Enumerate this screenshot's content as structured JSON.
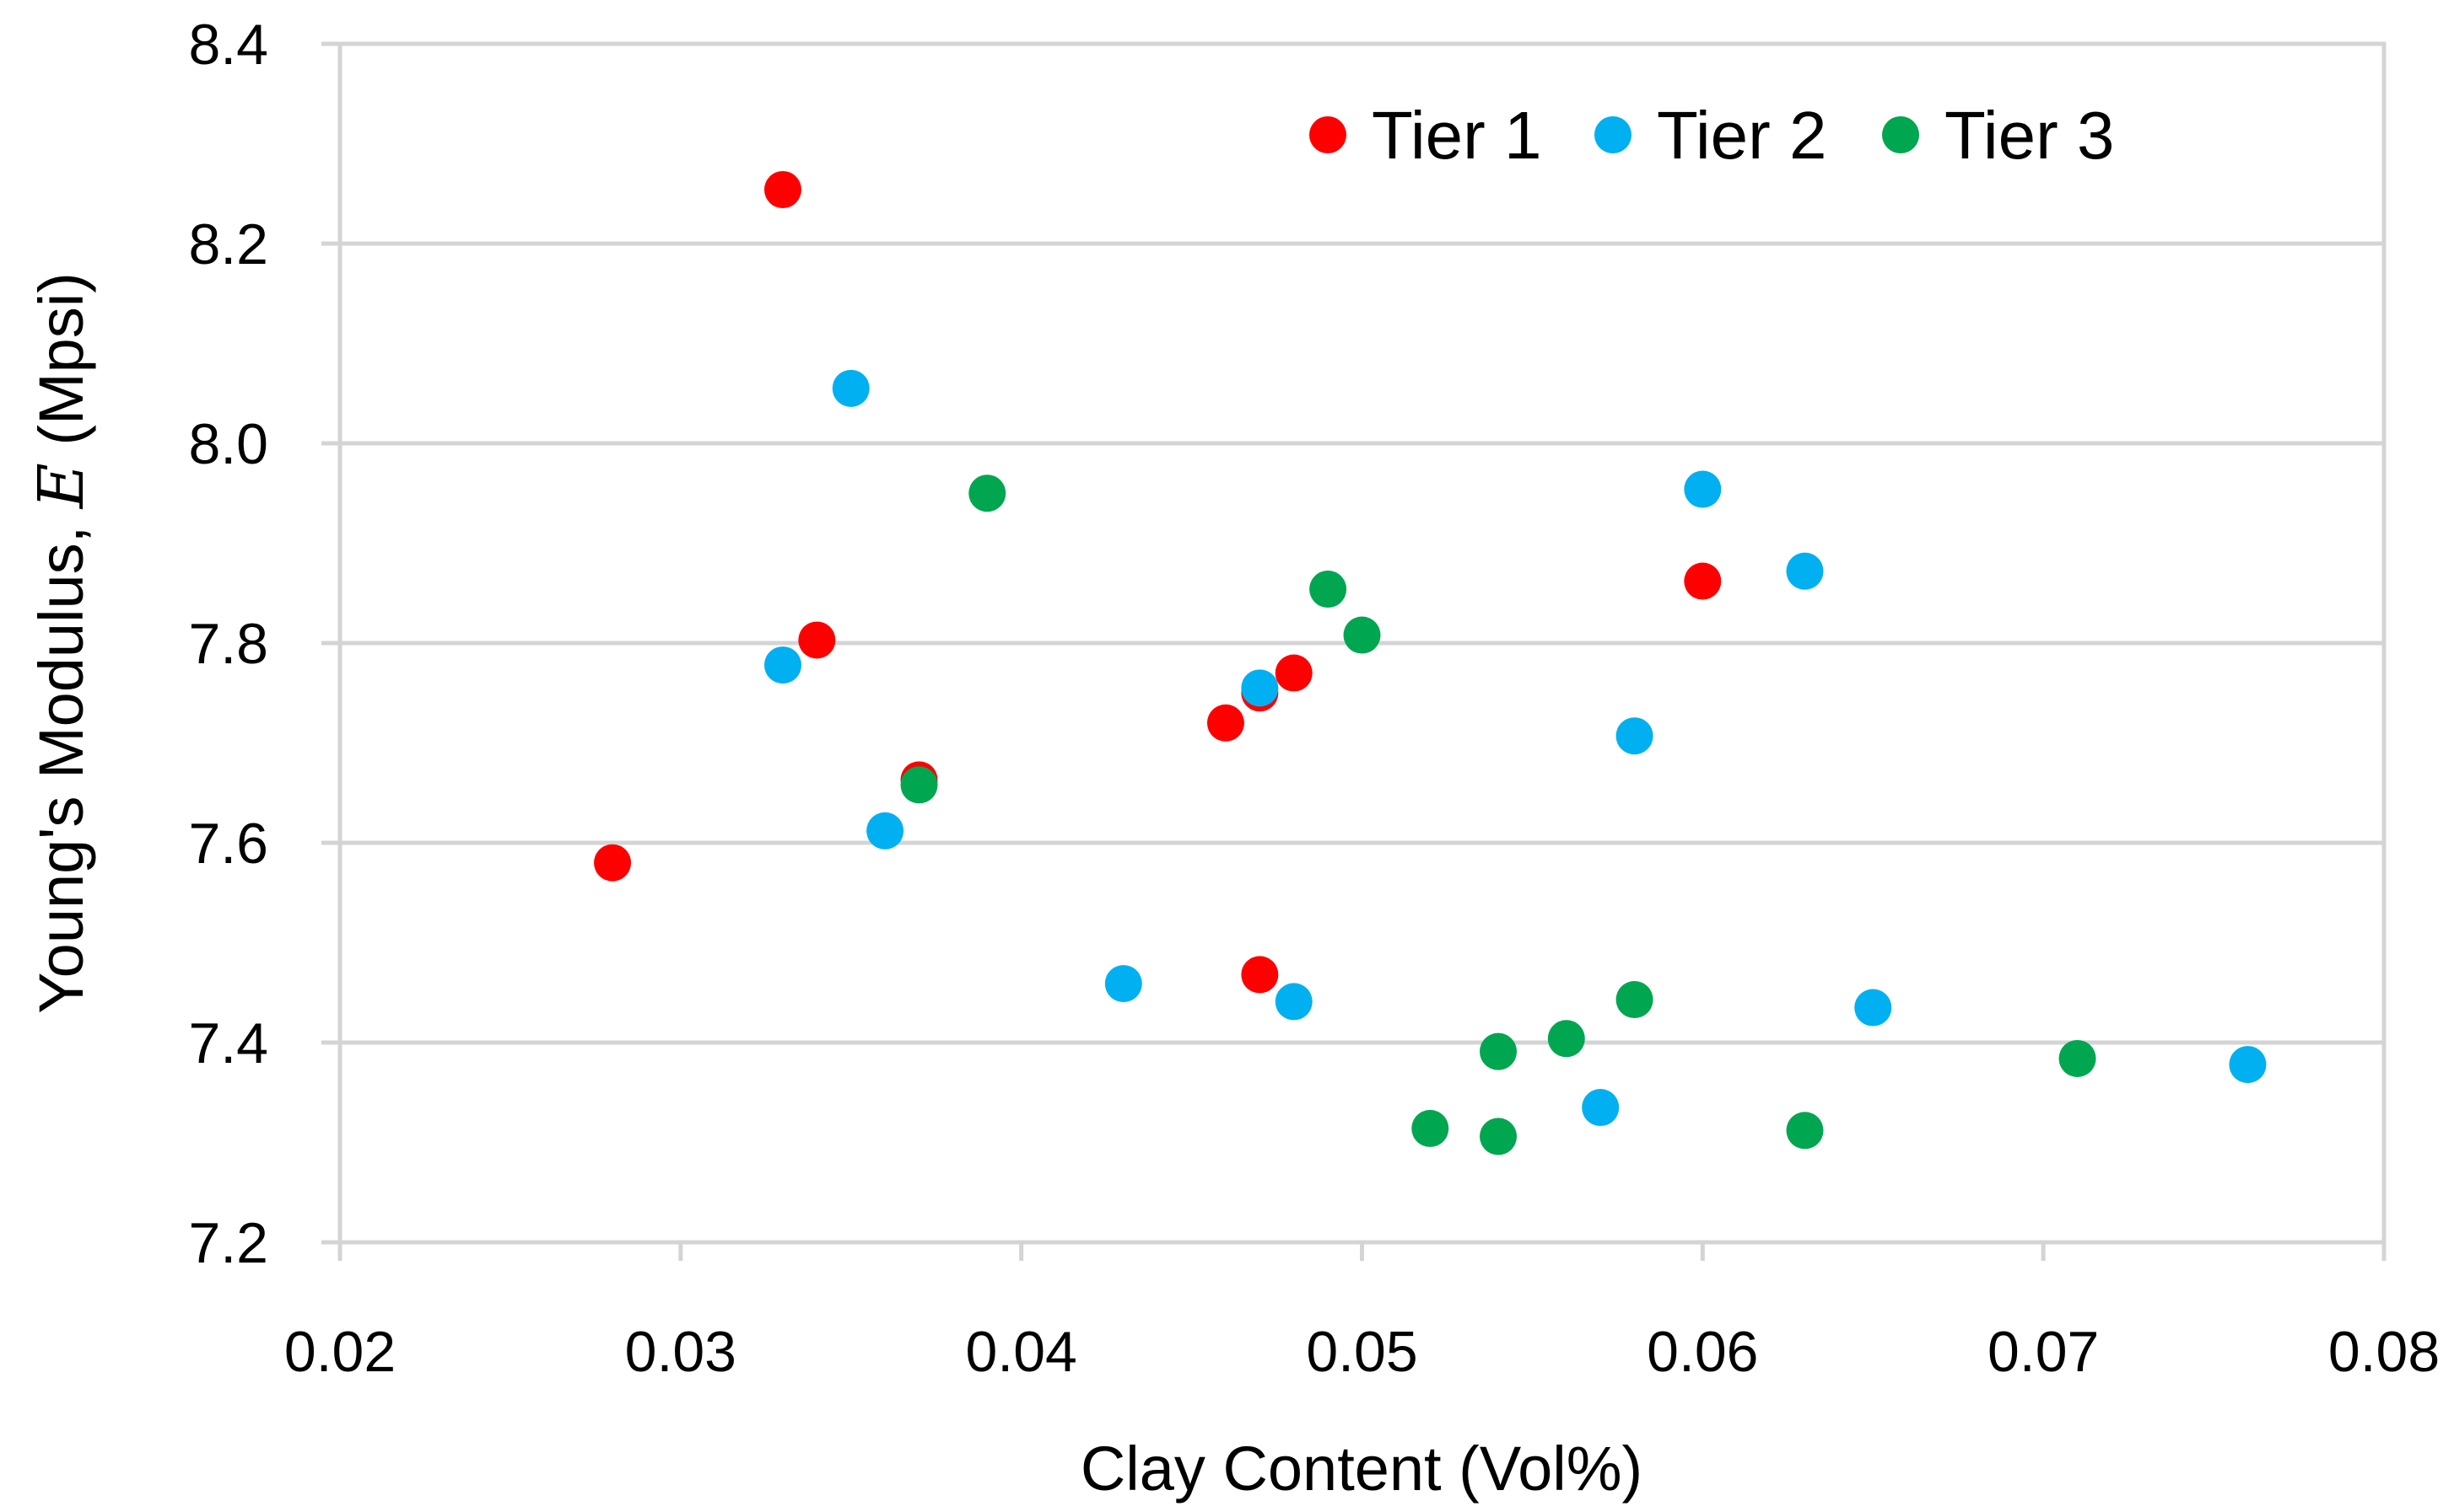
{
  "chart_data": {
    "type": "scatter",
    "title": "",
    "xlabel": "Clay Content (Vol%)",
    "ylabel": {
      "prefix": "Young's Modulus, ",
      "symbol": "E",
      "suffix": " (Mpsi)"
    },
    "xlim": [
      0.02,
      0.08
    ],
    "ylim": [
      7.2,
      8.4
    ],
    "xticks": [
      "0.02",
      "0.03",
      "0.04",
      "0.05",
      "0.06",
      "0.07",
      "0.08"
    ],
    "yticks": [
      "7.2",
      "7.4",
      "7.6",
      "7.8",
      "8.0",
      "8.2",
      "8.4"
    ],
    "grid": "horizontal",
    "legend_position": "top-right",
    "series": [
      {
        "name": "Tier 1",
        "color": "#ff0000",
        "points": [
          [
            0.028,
            7.58
          ],
          [
            0.033,
            8.254
          ],
          [
            0.034,
            7.803
          ],
          [
            0.037,
            7.663
          ],
          [
            0.046,
            7.72
          ],
          [
            0.047,
            7.75
          ],
          [
            0.048,
            7.77
          ],
          [
            0.047,
            7.468
          ],
          [
            0.06,
            7.862
          ]
        ]
      },
      {
        "name": "Tier 2",
        "color": "#00b0f0",
        "points": [
          [
            0.033,
            7.778
          ],
          [
            0.035,
            8.055
          ],
          [
            0.036,
            7.612
          ],
          [
            0.043,
            7.459
          ],
          [
            0.047,
            7.755
          ],
          [
            0.048,
            7.441
          ],
          [
            0.057,
            7.335
          ],
          [
            0.058,
            7.707
          ],
          [
            0.06,
            7.954
          ],
          [
            0.063,
            7.872
          ],
          [
            0.065,
            7.435
          ],
          [
            0.076,
            7.378
          ]
        ]
      },
      {
        "name": "Tier 3",
        "color": "#00a650",
        "points": [
          [
            0.037,
            7.658
          ],
          [
            0.039,
            7.95
          ],
          [
            0.049,
            7.854
          ],
          [
            0.05,
            7.808
          ],
          [
            0.052,
            7.314
          ],
          [
            0.054,
            7.306
          ],
          [
            0.054,
            7.391
          ],
          [
            0.056,
            7.404
          ],
          [
            0.058,
            7.443
          ],
          [
            0.063,
            7.312
          ],
          [
            0.071,
            7.384
          ]
        ]
      }
    ]
  }
}
